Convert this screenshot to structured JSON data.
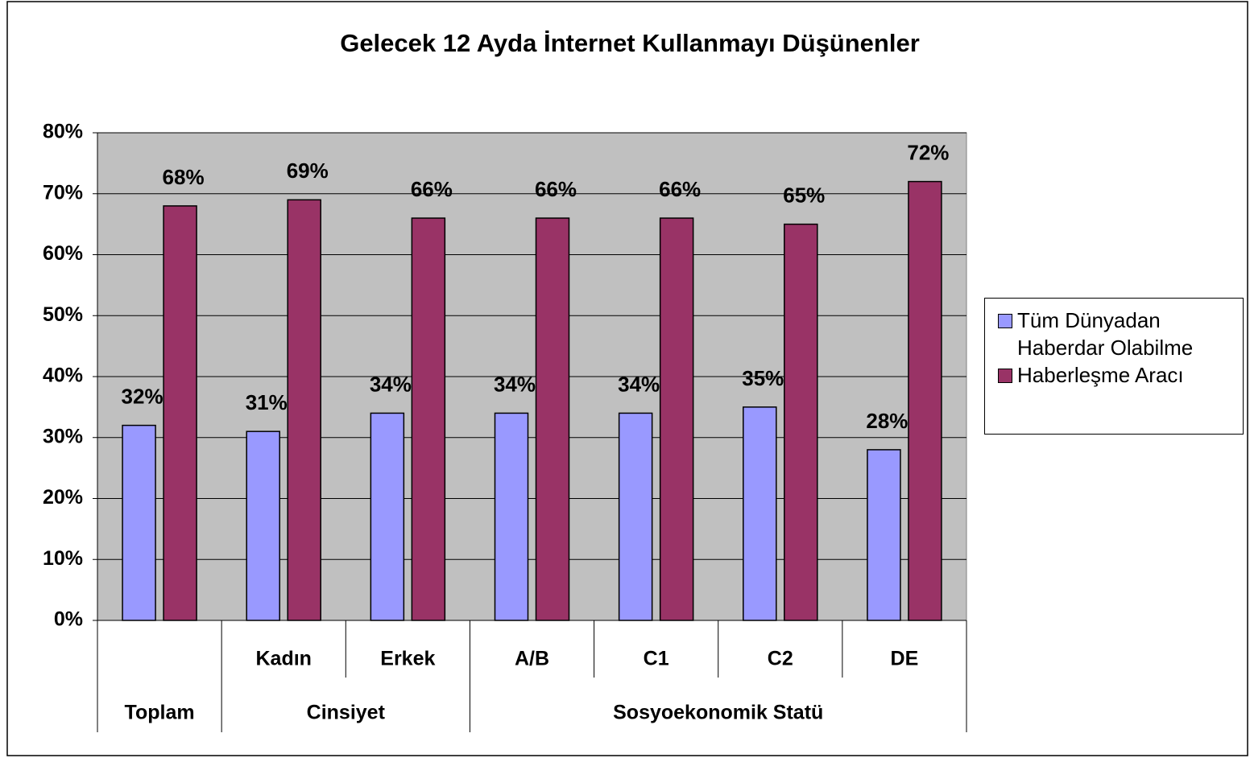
{
  "chart_data": {
    "type": "bar",
    "title": "Gelecek 12 Ayda İnternet Kullanmayı Düşünenler",
    "categories": [
      null,
      "Kadın",
      "Erkek",
      "A/B",
      "C1",
      "C2",
      "DE"
    ],
    "groups": [
      {
        "name": "Toplam",
        "span": 1
      },
      {
        "name": "Cinsiyet",
        "span": 2
      },
      {
        "name": "Sosyoekonomik Statü",
        "span": 4
      }
    ],
    "series": [
      {
        "name": "Tüm Dünyadan Haberdar Olabilme",
        "color": "#9999ff",
        "values": [
          32,
          31,
          34,
          34,
          34,
          35,
          28
        ],
        "value_labels": [
          "32%",
          "31%",
          "34%",
          "34%",
          "34%",
          "35%",
          "28%"
        ]
      },
      {
        "name": "Haberleşme Aracı",
        "color": "#993366",
        "values": [
          68,
          69,
          66,
          66,
          66,
          65,
          72
        ],
        "value_labels": [
          "68%",
          "69%",
          "66%",
          "66%",
          "66%",
          "65%",
          "72%"
        ]
      }
    ],
    "ylim": [
      0,
      80
    ],
    "yticks": [
      {
        "value": 0,
        "label": "0%"
      },
      {
        "value": 10,
        "label": "10%"
      },
      {
        "value": 20,
        "label": "20%"
      },
      {
        "value": 30,
        "label": "30%"
      },
      {
        "value": 40,
        "label": "40%"
      },
      {
        "value": 50,
        "label": "50%"
      },
      {
        "value": 60,
        "label": "60%"
      },
      {
        "value": 70,
        "label": "70%"
      },
      {
        "value": 80,
        "label": "80%"
      }
    ],
    "grid": true,
    "plot_background": "#c0c0c0",
    "legend": "right"
  }
}
